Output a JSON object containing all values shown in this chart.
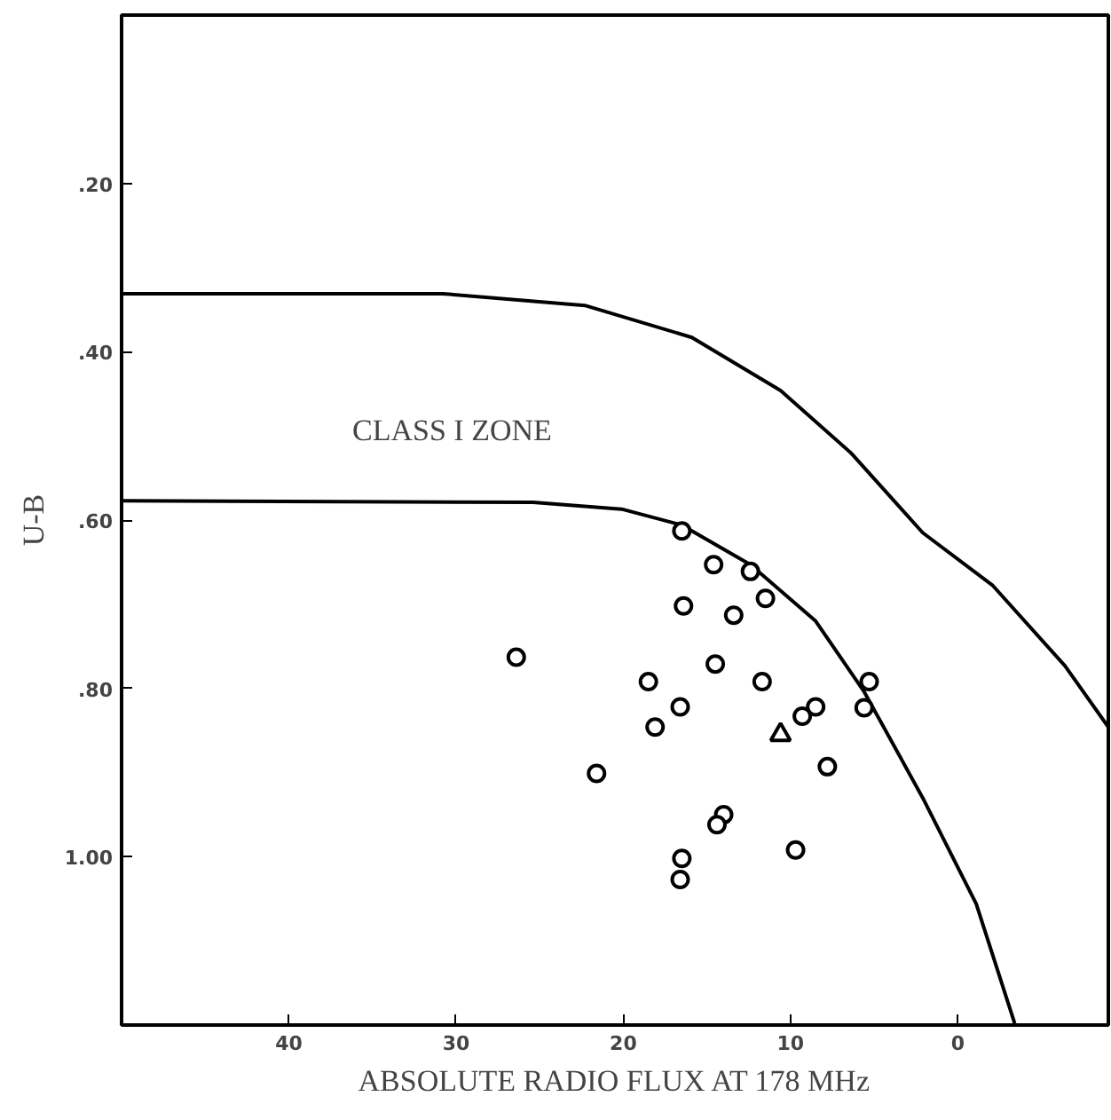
{
  "chart_data": {
    "type": "scatter",
    "xlabel": "ABSOLUTE RADIO FLUX AT 178 MHz",
    "ylabel": "U-B",
    "xlim": [
      50,
      -9
    ],
    "ylim": [
      1.2,
      0
    ],
    "xticks": [
      40,
      30,
      20,
      10,
      0
    ],
    "yticks": [
      {
        "value": 0.2,
        "label": ".20"
      },
      {
        "value": 0.4,
        "label": ".40"
      },
      {
        "value": 0.6,
        "label": ".60"
      },
      {
        "value": 0.8,
        "label": ".80"
      },
      {
        "value": 1.0,
        "label": "1.00"
      }
    ],
    "grid": false,
    "annotations": [
      "CLASS I ZONE"
    ],
    "series": [
      {
        "type": "line",
        "color": "#000000",
        "marker": "none",
        "x": [
          50,
          30.8,
          22.3,
          15.9,
          10.6,
          6.4,
          2.1,
          -2.1,
          -6.4,
          -9
        ],
        "values": [
          0.331,
          0.331,
          0.345,
          0.383,
          0.446,
          0.52,
          0.615,
          0.678,
          0.773,
          0.846
        ]
      },
      {
        "type": "line",
        "color": "#000000",
        "marker": "none",
        "x": [
          50,
          25.4,
          20.1,
          16.5,
          12.4,
          8.5,
          5.6,
          2.1,
          -1.1,
          -3.4
        ],
        "values": [
          0.577,
          0.579,
          0.587,
          0.606,
          0.653,
          0.72,
          0.804,
          0.93,
          1.056,
          1.198
        ]
      },
      {
        "color": "#000000",
        "marker": "circle",
        "x": [
          16.5,
          14.6,
          12.4,
          11.5,
          16.4,
          13.4,
          26.4,
          14.5,
          18.5,
          11.7,
          5.3,
          16.6,
          8.5,
          5.6,
          9.3,
          18.1,
          7.8,
          21.6,
          14.0,
          14.4,
          9.7,
          16.5,
          16.6
        ],
        "values": [
          0.613,
          0.653,
          0.661,
          0.693,
          0.702,
          0.713,
          0.763,
          0.771,
          0.792,
          0.792,
          0.792,
          0.822,
          0.822,
          0.823,
          0.833,
          0.846,
          0.893,
          0.901,
          0.95,
          0.962,
          0.992,
          1.002,
          1.027
        ]
      },
      {
        "color": "#000000",
        "marker": "triangle",
        "x": [
          10.6
        ],
        "values": [
          0.855
        ]
      }
    ]
  }
}
